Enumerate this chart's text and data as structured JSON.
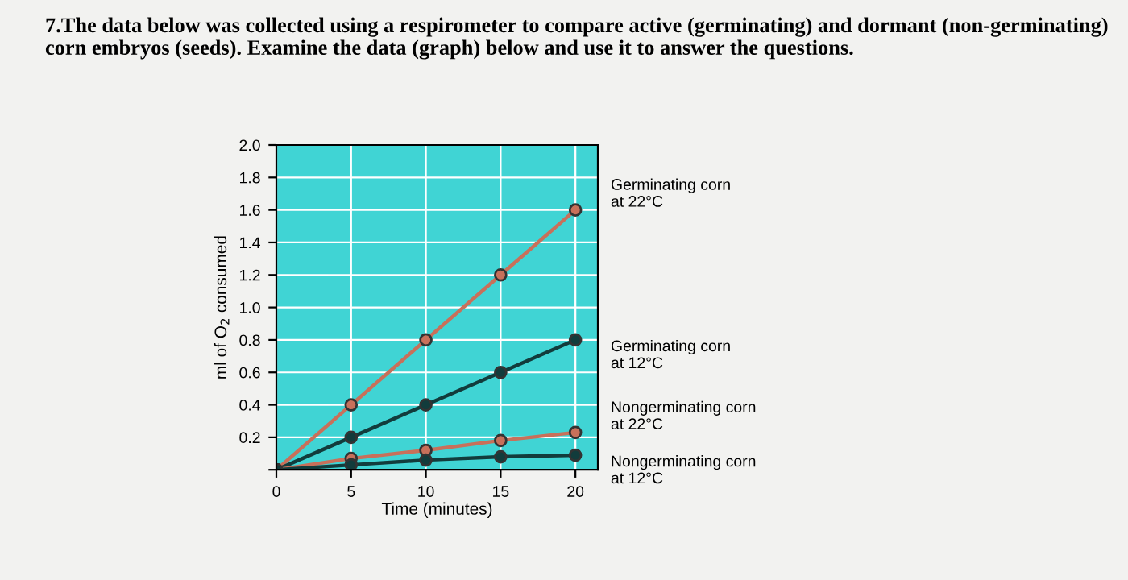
{
  "chart_data": {
    "type": "line",
    "title": "7.The data below was collected using a respirometer to compare active (germinating) and dormant (non-germinating) corn embryos (seeds). Examine the data (graph) below and use it to answer the questions.",
    "xlabel": "Time (minutes)",
    "ylabel": "ml of O$_{2}$ consumed",
    "x": [
      0,
      5,
      10,
      15,
      20
    ],
    "series": [
      {
        "name": "Germinating corn\nat 22°C",
        "color": "#c8705a",
        "values": [
          0,
          0.4,
          0.8,
          1.2,
          1.6
        ]
      },
      {
        "name": "Germinating corn\nat 12°C",
        "color": "#123c3c",
        "values": [
          0,
          0.2,
          0.4,
          0.6,
          0.8
        ]
      },
      {
        "name": "Nongerminating corn\nat 22°C",
        "color": "#c8705a",
        "values": [
          0,
          0.07,
          0.12,
          0.18,
          0.23
        ]
      },
      {
        "name": "Nongerminating corn\nat 12°C",
        "color": "#123c3c",
        "values": [
          0,
          0.03,
          0.06,
          0.08,
          0.09
        ]
      }
    ],
    "xlim": [
      0,
      21.5
    ],
    "xticks": [
      0,
      5,
      10,
      15,
      20
    ],
    "ylim": [
      0,
      2.0
    ],
    "yticks": [
      {
        "value": 0,
        "label": null
      },
      0.2,
      0.4,
      0.6,
      0.8,
      {
        "value": 1,
        "label": "1.0"
      },
      1.2,
      1.4,
      1.6,
      1.8,
      {
        "value": 2,
        "label": "2.0"
      }
    ],
    "grid": true,
    "legend": "right",
    "marker": "circle",
    "line_style": "solid"
  }
}
